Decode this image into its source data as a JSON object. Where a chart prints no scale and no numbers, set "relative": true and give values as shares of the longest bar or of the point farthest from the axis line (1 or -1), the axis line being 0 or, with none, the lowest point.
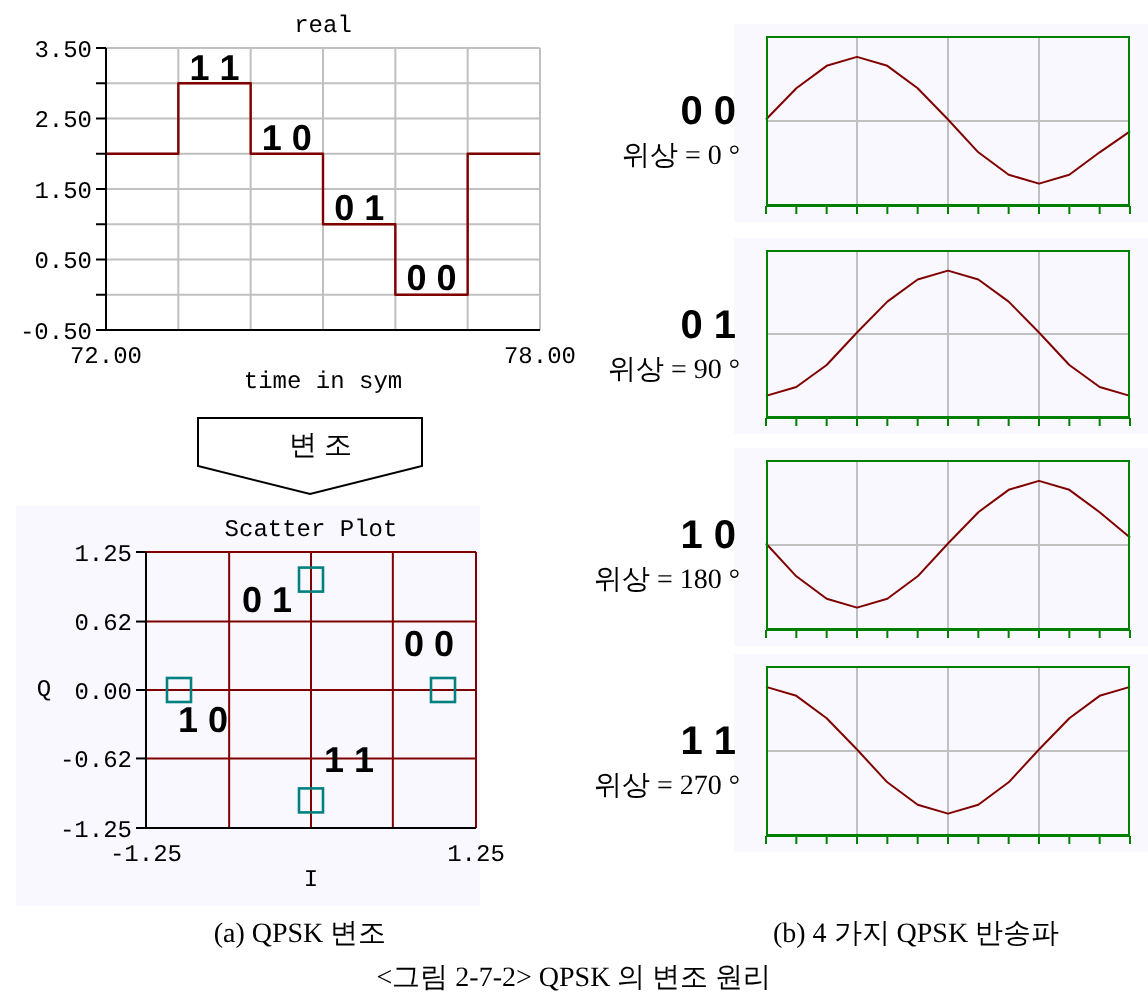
{
  "chart_data": [
    {
      "type": "step",
      "title": "real",
      "xlabel": "time in sym",
      "x": [
        72,
        73,
        74,
        75,
        76,
        77,
        78
      ],
      "values": [
        2,
        3,
        2,
        1,
        0,
        2,
        2
      ],
      "color": "#800000",
      "xlim": [
        72,
        78
      ],
      "xticks": [
        {
          "value": 72,
          "label": "72.00"
        },
        {
          "value": 73,
          "label": null
        },
        {
          "value": 74,
          "label": null
        },
        {
          "value": 75,
          "label": null
        },
        {
          "value": 76,
          "label": null
        },
        {
          "value": 77,
          "label": null
        },
        {
          "value": 78,
          "label": "78.00"
        }
      ],
      "ylim": [
        -0.5,
        3.5
      ],
      "yticks": [
        {
          "value": -0.5,
          "label": "-0.50"
        },
        {
          "value": 0,
          "label": null
        },
        {
          "value": 0.5,
          "label": "0.50"
        },
        {
          "value": 1,
          "label": null
        },
        {
          "value": 1.5,
          "label": "1.50"
        },
        {
          "value": 2,
          "label": null
        },
        {
          "value": 2.5,
          "label": "2.50"
        },
        {
          "value": 3,
          "label": null
        },
        {
          "value": 3.5,
          "label": "3.50"
        }
      ],
      "grid": true,
      "annotations": [
        {
          "text": "1 1",
          "x": 73.5,
          "y": 3
        },
        {
          "text": "1 0",
          "x": 74.5,
          "y": 2
        },
        {
          "text": "0 1",
          "x": 75.5,
          "y": 1
        },
        {
          "text": "0 0",
          "x": 76.5,
          "y": 0
        }
      ]
    },
    {
      "type": "scatter",
      "title": "Scatter Plot",
      "xlabel": "I",
      "ylabel": "Q",
      "x": [
        0,
        1,
        -1,
        0
      ],
      "values": [
        1,
        0,
        0,
        -1
      ],
      "color": "#008080",
      "marker": "square",
      "xlim": [
        -1.25,
        1.25
      ],
      "xticks": [
        -1.25,
        {
          "value": -0.62,
          "label": null
        },
        {
          "value": 0,
          "label": null
        },
        {
          "value": 0.62,
          "label": null
        },
        1.25
      ],
      "ylim": [
        -1.25,
        1.25
      ],
      "yticks": [
        -1.25,
        -0.62,
        {
          "value": 0,
          "label": "0.00"
        },
        0.62,
        1.25
      ],
      "grid": true,
      "annotations": [
        "변 조",
        {
          "text": "0 1",
          "x": 0,
          "y": 1
        },
        {
          "text": "0 0",
          "x": 1,
          "y": 0
        },
        {
          "text": "1 0",
          "x": -1,
          "y": 0
        },
        {
          "text": "1 1",
          "x": 0,
          "y": -1
        },
        "(a) QPSK 변조"
      ]
    },
    {
      "type": "line",
      "relative": true,
      "title": "0 0",
      "subtitle": "위상 = 0 °",
      "categories": [
        null,
        null,
        null,
        null,
        null,
        null,
        null,
        null,
        null,
        null,
        null,
        null,
        null
      ],
      "values": [
        0.58,
        0.79,
        0.94,
        1,
        0.94,
        0.79,
        0.58,
        0.36,
        0.21,
        0.15,
        0.21,
        0.36,
        0.5
      ],
      "color": "#800000",
      "grid": true
    },
    {
      "type": "line",
      "relative": true,
      "title": "0 1",
      "subtitle": "위상 = 90 °",
      "categories": [
        null,
        null,
        null,
        null,
        null,
        null,
        null,
        null,
        null,
        null,
        null,
        null,
        null
      ],
      "values": [
        0.15,
        0.21,
        0.36,
        0.58,
        0.79,
        0.94,
        1,
        0.94,
        0.79,
        0.58,
        0.36,
        0.21,
        0.15
      ],
      "color": "#800000",
      "grid": true
    },
    {
      "type": "line",
      "relative": true,
      "title": "1 0",
      "subtitle": "위상 = 180 °",
      "categories": [
        null,
        null,
        null,
        null,
        null,
        null,
        null,
        null,
        null,
        null,
        null,
        null,
        null
      ],
      "values": [
        0.58,
        0.36,
        0.21,
        0.15,
        0.21,
        0.36,
        0.58,
        0.79,
        0.94,
        1,
        0.94,
        0.79,
        0.62
      ],
      "color": "#800000",
      "grid": true
    },
    {
      "type": "line",
      "relative": true,
      "title": "1 1",
      "subtitle": "위상 = 270 °",
      "categories": [
        null,
        null,
        null,
        null,
        null,
        null,
        null,
        null,
        null,
        null,
        null,
        null,
        null
      ],
      "values": [
        1,
        0.94,
        0.79,
        0.58,
        0.36,
        0.21,
        0.15,
        0.21,
        0.36,
        0.58,
        0.79,
        0.94,
        1
      ],
      "color": "#800000",
      "grid": true,
      "annotations": [
        "(b) 4 가지 QPSK 반송파",
        "<그림 2-7-2> QPSK 의 변조 원리"
      ]
    }
  ]
}
